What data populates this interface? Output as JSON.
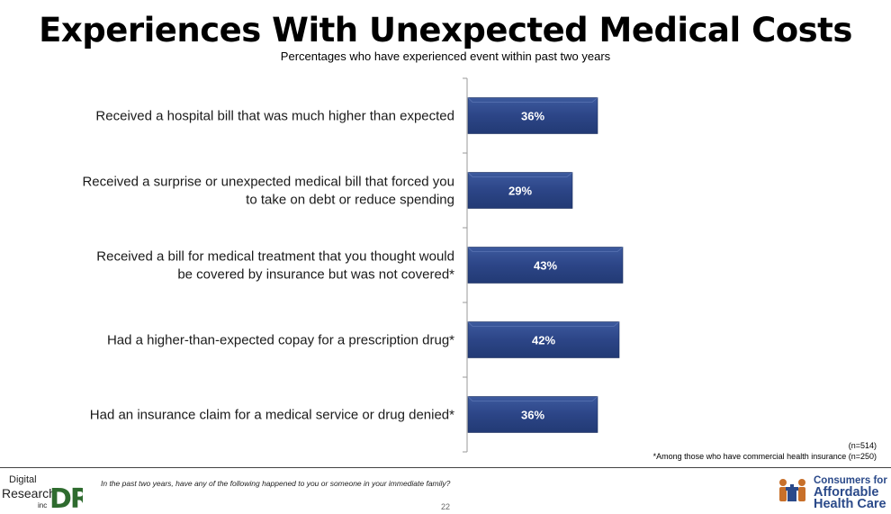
{
  "title": "Experiences With Unexpected Medical Costs",
  "subtitle": "Percentages who have experienced event within past two years",
  "chart_data": {
    "type": "bar",
    "orientation": "horizontal",
    "title": "Experiences With Unexpected Medical Costs",
    "subtitle": "Percentages who have experienced event within past two years",
    "categories": [
      [
        "Received a hospital bill that was much higher than expected"
      ],
      [
        "Received a surprise or unexpected medical bill that forced you",
        "to take on debt or reduce spending"
      ],
      [
        "Received a bill for medical treatment that you thought would",
        "be covered by insurance but was not covered*"
      ],
      [
        "Had a higher-than-expected copay for a prescription drug*"
      ],
      [
        "Had an insurance claim for a medical service or drug denied*"
      ]
    ],
    "values": [
      36,
      29,
      43,
      42,
      36
    ],
    "value_labels": [
      "36%",
      "29%",
      "43%",
      "42%",
      "36%"
    ],
    "xlim": [
      0,
      100
    ],
    "bar_color": "#2f4a8c"
  },
  "notes": {
    "sample": "(n=514)",
    "asterisk": "*Among those who have commercial health insurance (n=250)"
  },
  "footer": {
    "question": "In the past two years, have any of the following happened to you or someone in your immediate family?",
    "page_number": "22",
    "logo_left": {
      "line1": "Digital",
      "line2": "Research",
      "line3": "inc",
      "mark": "DRI"
    },
    "logo_right": {
      "line1": "Consumers for",
      "line2": "Affordable",
      "line3": "Health Care"
    }
  }
}
